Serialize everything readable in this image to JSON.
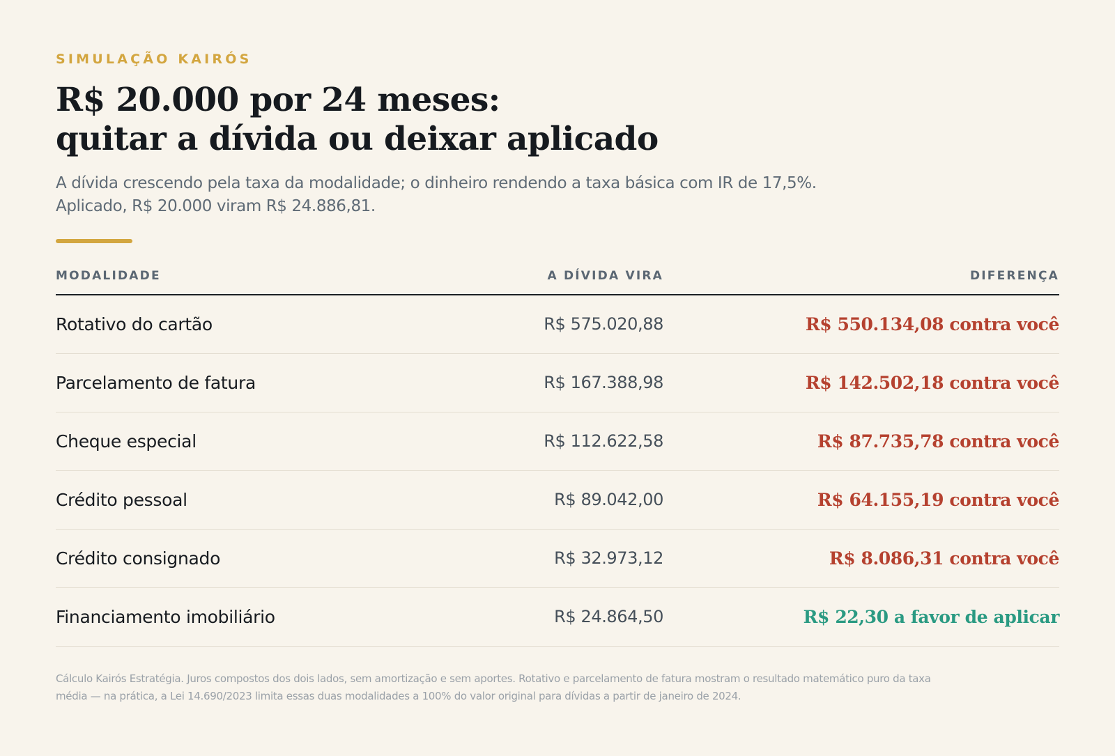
{
  "eyebrow": "SIMULAÇÃO KAIRÓS",
  "title": {
    "line1": "R$ 20.000 por 24 meses:",
    "line2": "quitar a dívida ou deixar aplicado"
  },
  "subtitle": {
    "line1": "A dívida crescendo pela taxa da modalidade; o dinheiro rendendo a taxa básica com IR de 17,5%.",
    "line2": "Aplicado, R$ 20.000 viram R$ 24.886,81."
  },
  "table": {
    "headers": {
      "modalidade": "MODALIDADE",
      "divida": "A DÍVIDA VIRA",
      "diferenca": "DIFERENÇA"
    },
    "rows": [
      {
        "modalidade": "Rotativo do cartão",
        "divida": "R$ 575.020,88",
        "diferenca": "R$ 550.134,08 contra você",
        "status": "against"
      },
      {
        "modalidade": "Parcelamento de fatura",
        "divida": "R$ 167.388,98",
        "diferenca": "R$ 142.502,18 contra você",
        "status": "against"
      },
      {
        "modalidade": "Cheque especial",
        "divida": "R$ 112.622,58",
        "diferenca": "R$ 87.735,78 contra você",
        "status": "against"
      },
      {
        "modalidade": "Crédito pessoal",
        "divida": "R$ 89.042,00",
        "diferenca": "R$ 64.155,19 contra você",
        "status": "against"
      },
      {
        "modalidade": "Crédito consignado",
        "divida": "R$ 32.973,12",
        "diferenca": "R$ 8.086,31 contra você",
        "status": "against"
      },
      {
        "modalidade": "Financiamento imobiliário",
        "divida": "R$ 24.864,50",
        "diferenca": "R$ 22,30 a favor de aplicar",
        "status": "favor"
      }
    ]
  },
  "footnote": {
    "line1": "Cálculo Kairós Estratégia. Juros compostos dos dois lados, sem amortização e sem aportes. Rotativo e parcelamento de fatura mostram o resultado matemático puro da taxa",
    "line2": "média — na prática, a Lei 14.690/2023 limita essas duas modalidades a 100% do valor original para dívidas a partir de janeiro de 2024."
  },
  "colors": {
    "background": "#f8f4ec",
    "accent": "#d3a640",
    "against": "#b5412f",
    "favor": "#2a9a82"
  }
}
